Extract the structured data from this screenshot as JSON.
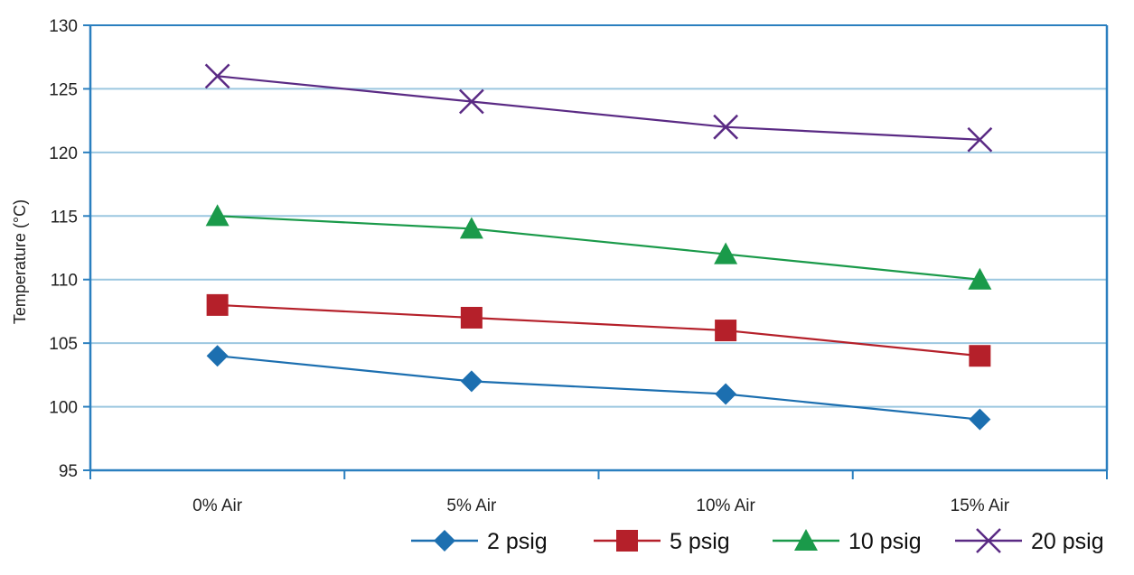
{
  "chart_data": {
    "type": "line",
    "title": "",
    "xlabel": "",
    "ylabel": "Temperature (°C)",
    "categories": [
      "0% Air",
      "5% Air",
      "10% Air",
      "15% Air"
    ],
    "ylim": [
      95,
      130
    ],
    "yticks": [
      95,
      100,
      105,
      110,
      115,
      120,
      125,
      130
    ],
    "grid": true,
    "legend_position": "bottom-right",
    "series": [
      {
        "name": "2 psig",
        "values": [
          104,
          102,
          101,
          99
        ],
        "color": "#1c6fb0",
        "marker": "diamond"
      },
      {
        "name": "5 psig",
        "values": [
          108,
          107,
          106,
          104
        ],
        "color": "#b5202a",
        "marker": "square"
      },
      {
        "name": "10 psig",
        "values": [
          115,
          114,
          112,
          110
        ],
        "color": "#1a9a4a",
        "marker": "triangle"
      },
      {
        "name": "20 psig",
        "values": [
          126,
          124,
          122,
          121
        ],
        "color": "#5a2a84",
        "marker": "x"
      }
    ],
    "colors": {
      "grid": "#9cc7e0",
      "axis": "#2a7fbf"
    }
  }
}
